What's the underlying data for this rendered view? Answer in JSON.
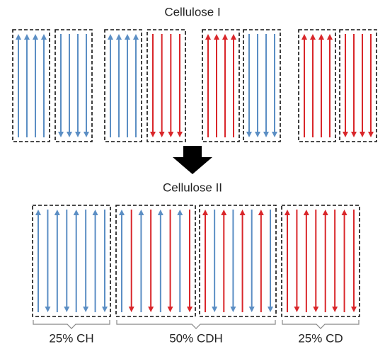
{
  "titles": {
    "top": "Cellulose I",
    "bottom": "Cellulose II"
  },
  "groups": [
    {
      "label": "25% CH"
    },
    {
      "label": "50% CDH"
    },
    {
      "label": "25% CD"
    }
  ]
}
